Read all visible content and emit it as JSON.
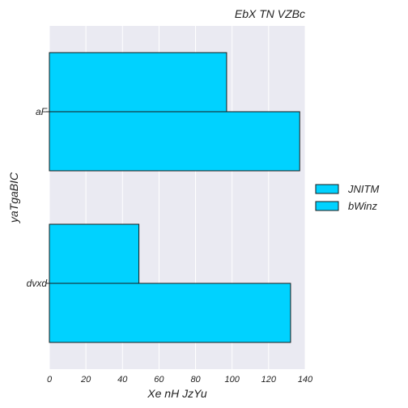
{
  "chart_data": {
    "type": "bar",
    "orientation": "horizontal",
    "title": "EbX TN VZBc",
    "xlabel": "Xe nH JzYu",
    "ylabel": "yaTgaBIC",
    "categories": [
      "aF",
      "dvxd"
    ],
    "series": [
      {
        "name": "JNITM",
        "values": [
          97,
          49
        ]
      },
      {
        "name": "bWinz",
        "values": [
          137,
          132
        ]
      }
    ],
    "xlim": [
      0,
      140
    ],
    "xticks": [
      0,
      20,
      40,
      60,
      80,
      100,
      120,
      140
    ],
    "grid": true,
    "legend": "right",
    "colors": {
      "bar_fill": "#00d2ff",
      "bar_edge": "#1a1a1a",
      "plot_background": "#eaeaf2",
      "grid": "#ffffff"
    }
  }
}
